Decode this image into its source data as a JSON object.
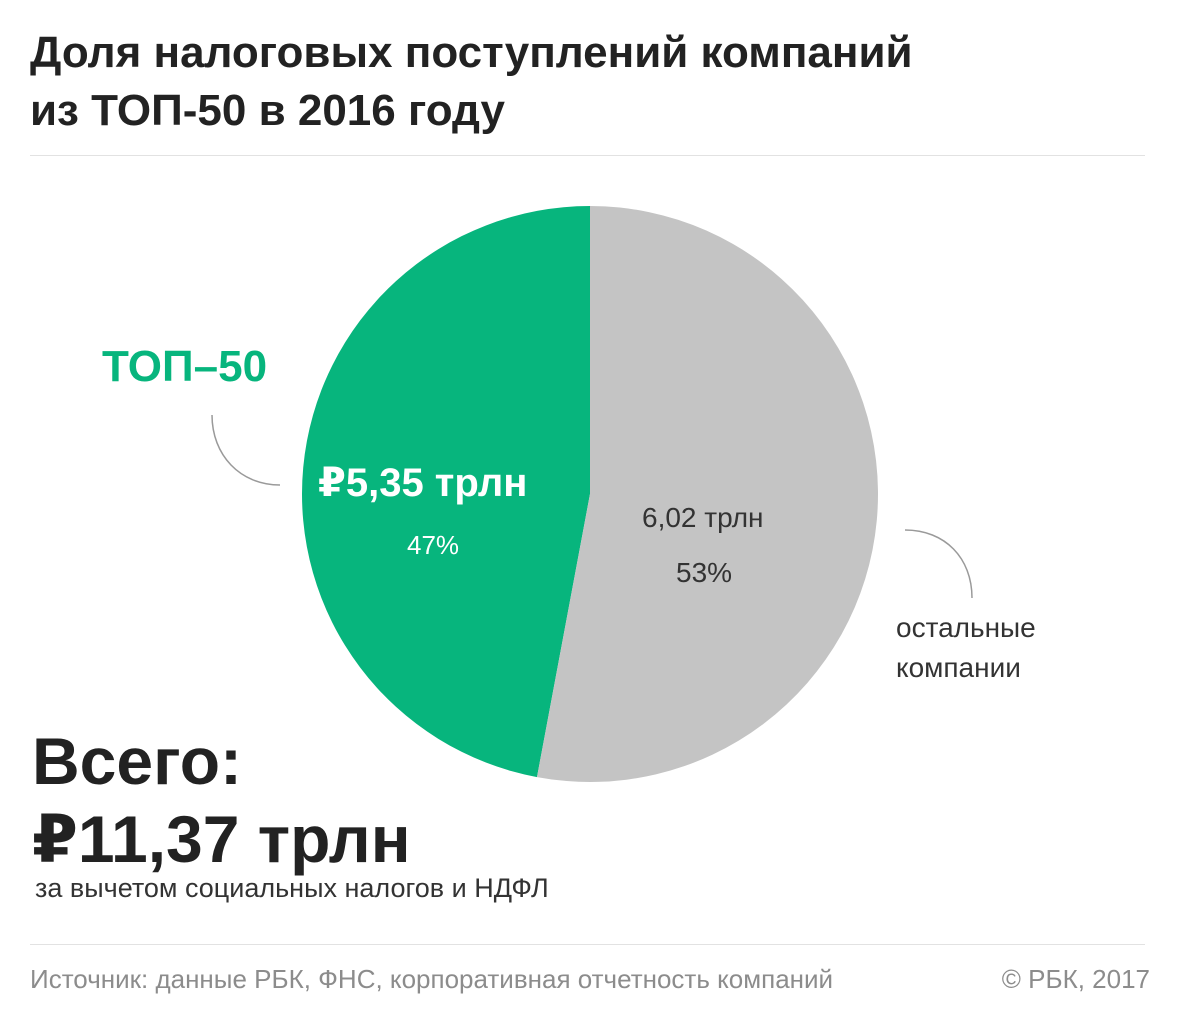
{
  "title": {
    "line1": "Доля налоговых поступлений компаний",
    "line2": "из ТОП-50 в 2016 году"
  },
  "chart_data": {
    "type": "pie",
    "title": "Доля налоговых поступлений компаний из ТОП-50 в 2016 году",
    "slices": [
      {
        "label": "ТОП–50",
        "value": 5.35,
        "value_label": "₽5,35 трлн",
        "percent": 47,
        "percent_label": "47%",
        "color": "#07b57d"
      },
      {
        "label_line1": "остальные",
        "label_line2": "компании",
        "value": 6.02,
        "value_label": "6,02 трлн",
        "percent": 53,
        "percent_label": "53%",
        "color": "#c4c4c4"
      }
    ],
    "unit": "трлн руб.",
    "total": 11.37
  },
  "total": {
    "line1": "Всего:",
    "line2": "₽11,37 трлн",
    "note": "за вычетом социальных налогов и НДФЛ"
  },
  "footer": {
    "source": "Источник: данные РБК, ФНС, корпоративная отчетность компаний",
    "copyright": "© РБК, 2017"
  },
  "colors": {
    "accent": "#07b57d",
    "rest": "#c4c4c4",
    "leader": "#9a9a9a"
  }
}
